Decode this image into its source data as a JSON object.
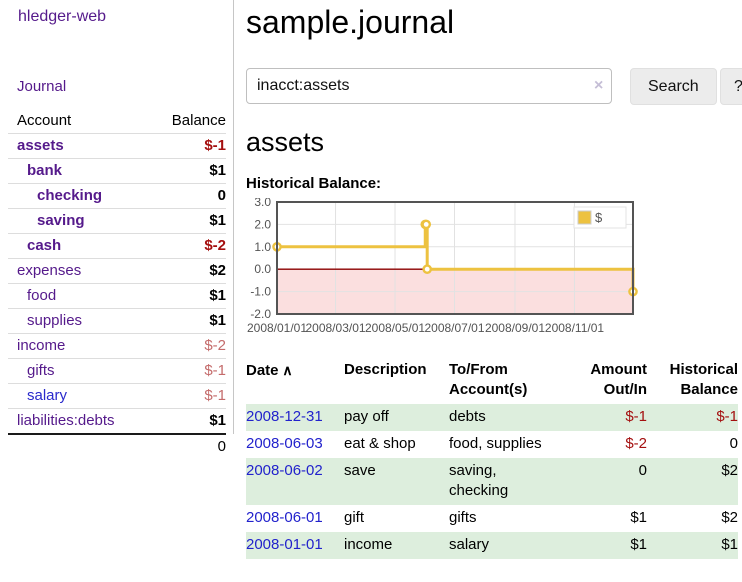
{
  "app": {
    "title": "hledger-web",
    "nav_journal": "Journal"
  },
  "header": {
    "journal_title": "sample.journal"
  },
  "search": {
    "value": "inacct:assets",
    "clear_icon": "×",
    "button_label": "Search",
    "help_label": "?"
  },
  "account_page": {
    "heading": "assets",
    "chart_label": "Historical Balance:"
  },
  "sidebar": {
    "headers": {
      "account": "Account",
      "balance": "Balance"
    },
    "accounts": [
      {
        "name": "assets",
        "balance": "$-1",
        "depth": 0,
        "bold": true,
        "neg": "strong"
      },
      {
        "name": "bank",
        "balance": "$1",
        "depth": 1,
        "bold": true,
        "neg": "none"
      },
      {
        "name": "checking",
        "balance": "0",
        "depth": 2,
        "bold": true,
        "neg": "none"
      },
      {
        "name": "saving",
        "balance": "$1",
        "depth": 2,
        "bold": true,
        "neg": "none"
      },
      {
        "name": "cash",
        "balance": "$-2",
        "depth": 1,
        "bold": true,
        "neg": "strong"
      },
      {
        "name": "expenses",
        "balance": "$2",
        "depth": 0,
        "bold": false,
        "neg": "none"
      },
      {
        "name": "food",
        "balance": "$1",
        "depth": 1,
        "bold": false,
        "neg": "none"
      },
      {
        "name": "supplies",
        "balance": "$1",
        "depth": 1,
        "bold": false,
        "neg": "none"
      },
      {
        "name": "income",
        "balance": "$-2",
        "depth": 0,
        "bold": false,
        "neg": "soft"
      },
      {
        "name": "gifts",
        "balance": "$-1",
        "depth": 1,
        "bold": false,
        "neg": "soft"
      },
      {
        "name": "salary",
        "balance": "$-1",
        "depth": 1,
        "bold": false,
        "neg": "soft",
        "blue": true
      },
      {
        "name": "liabilities:debts",
        "balance": "$1",
        "depth": 0,
        "bold": false,
        "neg": "none"
      }
    ],
    "total": "0"
  },
  "chart_data": {
    "type": "line",
    "step": true,
    "title": "Historical Balance",
    "series": [
      {
        "name": "$",
        "color": "#edc240",
        "points": [
          [
            "2008-01-01",
            1
          ],
          [
            "2008-06-01",
            2
          ],
          [
            "2008-06-02",
            2
          ],
          [
            "2008-06-03",
            0
          ],
          [
            "2008-12-31",
            -1
          ]
        ]
      }
    ],
    "xlim": [
      "2008-01-01",
      "2008-12-31"
    ],
    "ylim": [
      -2,
      3
    ],
    "x_ticks": [
      {
        "date": "2008-01-01",
        "label": "2008/01/01"
      },
      {
        "date": "2008-03-01",
        "label": "2008/03/01"
      },
      {
        "date": "2008-05-01",
        "label": "2008/05/01"
      },
      {
        "date": "2008-07-01",
        "label": "2008/07/01"
      },
      {
        "date": "2008-09-01",
        "label": "2008/09/01"
      },
      {
        "date": "2008-11-01",
        "label": "2008/11/01"
      }
    ],
    "y_ticks": [
      {
        "v": 3,
        "label": "3.0"
      },
      {
        "v": 2,
        "label": "2.0"
      },
      {
        "v": 1,
        "label": "1.0"
      },
      {
        "v": 0,
        "label": "0.0"
      },
      {
        "v": -1,
        "label": "-1.0"
      },
      {
        "v": -2,
        "label": "-2.0"
      }
    ],
    "legend": {
      "label": "$",
      "position": "top-right"
    },
    "grid": true,
    "colors": {
      "line": "#edc240",
      "marker_fill": "#ffffff",
      "negative_fill": "#fbdfdf",
      "zero_line": "#8b0000",
      "gridline": "#e2e2e2",
      "border": "#545454",
      "tick_text": "#545454"
    }
  },
  "transactions": {
    "headers": [
      {
        "lines": [
          "Date"
        ],
        "sort_icon": "∧",
        "align": "left"
      },
      {
        "lines": [
          "Description"
        ],
        "align": "left"
      },
      {
        "lines": [
          "To/From",
          "Account(s)"
        ],
        "align": "left"
      },
      {
        "lines": [
          "Amount",
          "Out/In"
        ],
        "align": "right"
      },
      {
        "lines": [
          "Historical",
          "Balance"
        ],
        "align": "right"
      }
    ],
    "rows": [
      {
        "date": "2008-12-31",
        "description": "pay off",
        "accounts": [
          "debts"
        ],
        "amount": "$-1",
        "balance": "$-1"
      },
      {
        "date": "2008-06-03",
        "description": "eat & shop",
        "accounts": [
          "food, supplies"
        ],
        "amount": "$-2",
        "balance": "0"
      },
      {
        "date": "2008-06-02",
        "description": "save",
        "accounts": [
          "saving,",
          "checking"
        ],
        "amount": "0",
        "balance": "$2"
      },
      {
        "date": "2008-06-01",
        "description": "gift",
        "accounts": [
          "gifts"
        ],
        "amount": "$1",
        "balance": "$2"
      },
      {
        "date": "2008-01-01",
        "description": "income",
        "accounts": [
          "salary"
        ],
        "amount": "$1",
        "balance": "$1"
      }
    ]
  }
}
